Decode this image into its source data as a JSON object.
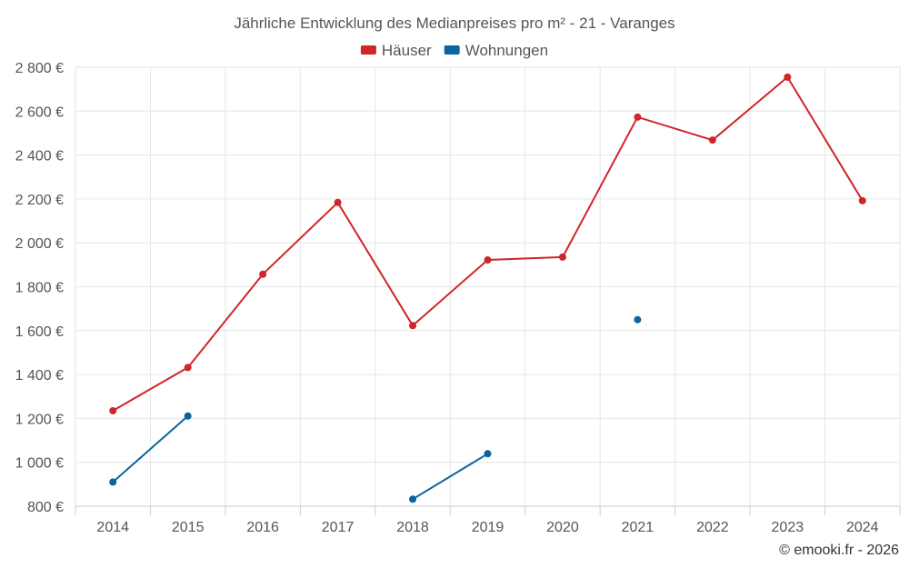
{
  "chart_data": {
    "type": "line",
    "title": "Jährliche Entwicklung des Medianpreises pro m² - 21 - Varanges",
    "categories": [
      "2014",
      "2015",
      "2016",
      "2017",
      "2018",
      "2019",
      "2020",
      "2021",
      "2022",
      "2023",
      "2024"
    ],
    "series": [
      {
        "name": "Häuser",
        "color": "#d0252b",
        "values": [
          1235,
          1432,
          1857,
          2184,
          1623,
          1922,
          1935,
          2573,
          2468,
          2755,
          2192
        ]
      },
      {
        "name": "Wohnungen",
        "color": "#0b64a0",
        "values": [
          910,
          1211,
          null,
          null,
          832,
          1039,
          null,
          1650,
          null,
          null,
          null
        ]
      }
    ],
    "ylim": [
      800,
      2800
    ],
    "y_ticks": [
      800,
      1000,
      1200,
      1400,
      1600,
      1800,
      2000,
      2200,
      2400,
      2600,
      2800
    ],
    "y_tick_labels": [
      "800 €",
      "1 000 €",
      "1 200 €",
      "1 400 €",
      "1 600 €",
      "1 800 €",
      "2 000 €",
      "2 200 €",
      "2 400 €",
      "2 600 €",
      "2 800 €"
    ],
    "xlabel": "",
    "ylabel": "",
    "grid": true,
    "legend_position": "top-center"
  },
  "credits": "© emooki.fr - 2026"
}
